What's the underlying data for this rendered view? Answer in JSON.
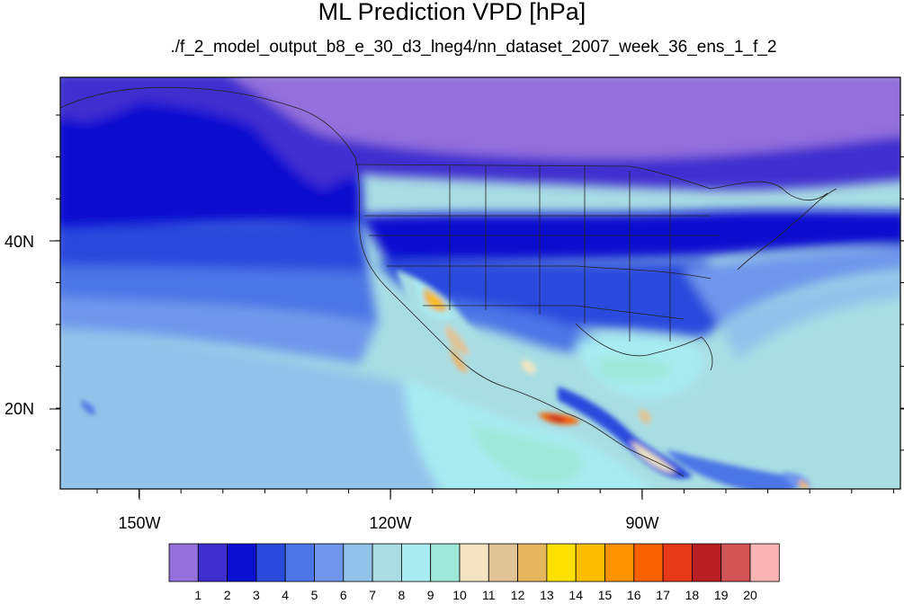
{
  "title": "ML Prediction VPD [hPa]",
  "subtitle": "./f_2_model_output_b8_e_30_d3_lneg4/nn_dataset_2007_week_36_ens_1_f_2",
  "lon_ticks": [
    "150W",
    "120W",
    "90W"
  ],
  "lat_ticks": [
    "40N",
    "20N"
  ],
  "colorbar": {
    "labels": [
      "1",
      "2",
      "3",
      "4",
      "5",
      "6",
      "7",
      "8",
      "9",
      "10",
      "11",
      "12",
      "13",
      "14",
      "15",
      "16",
      "17",
      "18",
      "19",
      "20"
    ],
    "colors": [
      "#9370db",
      "#3f2ecf",
      "#0a0fd0",
      "#2a49dd",
      "#4c76e6",
      "#6f96ec",
      "#93c3ea",
      "#a9dde3",
      "#a8ecf2",
      "#9ee8d8",
      "#f3e5c1",
      "#e0c495",
      "#e5b65c",
      "#fde000",
      "#fbbe00",
      "#fb9300",
      "#f96000",
      "#e8381a",
      "#b91f22",
      "#d25455",
      "#fab4b4"
    ]
  }
}
